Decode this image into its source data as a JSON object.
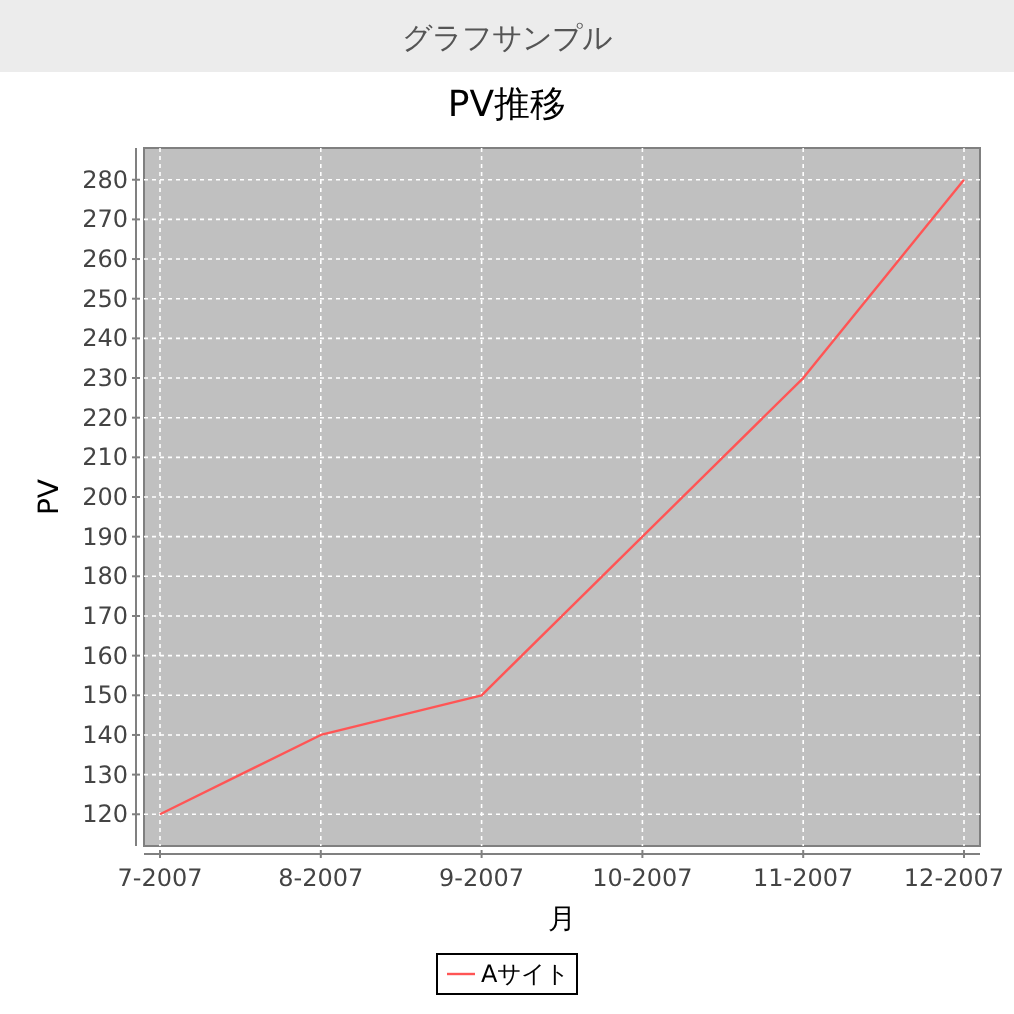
{
  "chart_data": {
    "type": "line",
    "title": "PV推移",
    "xlabel": "月",
    "ylabel": "PV",
    "annotations": [
      "グラフサンプル"
    ],
    "categories": [
      "7-2007",
      "8-2007",
      "9-2007",
      "10-2007",
      "11-2007",
      "12-2007"
    ],
    "series": [
      {
        "name": "Aサイト",
        "color": "#ff5555",
        "values": [
          120,
          140,
          150,
          190,
          230,
          280
        ]
      }
    ],
    "ylim": [
      112,
      288
    ],
    "yticks": [
      120,
      130,
      140,
      150,
      160,
      170,
      180,
      190,
      200,
      210,
      220,
      230,
      240,
      250,
      260,
      270,
      280
    ],
    "grid": true,
    "legend": "bottom",
    "marker": "none",
    "line_style": "solid"
  }
}
